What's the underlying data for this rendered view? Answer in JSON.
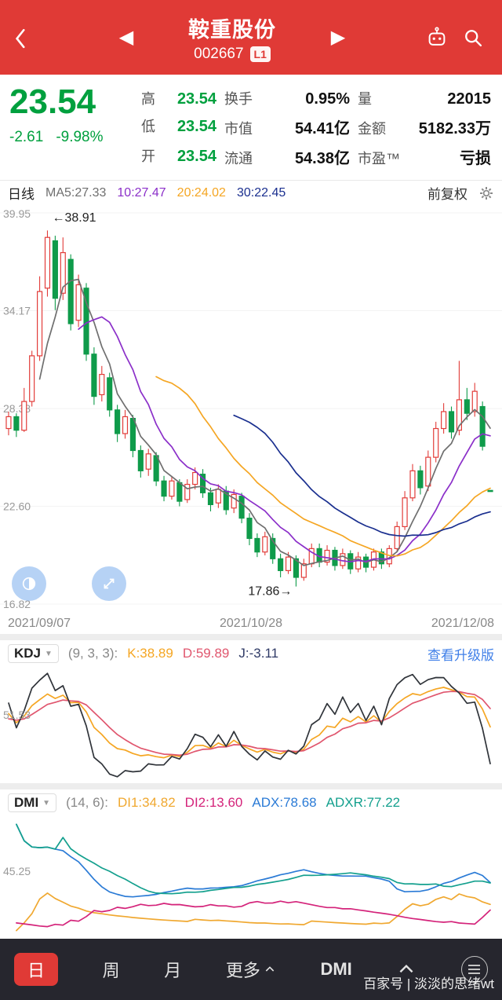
{
  "header": {
    "title": "鞍重股份",
    "code": "002667",
    "badge": "L1",
    "prev_glyph": "◀",
    "next_glyph": "▶"
  },
  "quote": {
    "price": "23.54",
    "change": "-2.61",
    "change_pct": "-9.98%",
    "stats": [
      {
        "label": "高",
        "value": "23.54"
      },
      {
        "label": "换手",
        "value": "0.95%"
      },
      {
        "label": "量",
        "value": "22015"
      },
      {
        "label": "低",
        "value": "23.54"
      },
      {
        "label": "市值",
        "value": "54.41亿"
      },
      {
        "label": "金额",
        "value": "5182.33万"
      },
      {
        "label": "开",
        "value": "23.54"
      },
      {
        "label": "流通",
        "value": "54.38亿"
      },
      {
        "label": "市盈™",
        "value": "亏损"
      }
    ]
  },
  "toolbar": {
    "period": "日线",
    "ma5": "MA5:27.33",
    "ma10": "10:27.47",
    "ma20": "20:24.02",
    "ma30": "30:22.45",
    "adjust": "前复权"
  },
  "kdj": {
    "name": "KDJ",
    "params": "(9, 3, 3):",
    "k": "K:38.89",
    "d": "D:59.89",
    "j": "J:-3.11",
    "link": "查看升级版",
    "axis": "51.53"
  },
  "dmi": {
    "name": "DMI",
    "params": "(14, 6):",
    "di1": "DI1:34.82",
    "di2": "DI2:13.60",
    "adx": "ADX:78.68",
    "adxr": "ADXR:77.22",
    "axis": "45.25"
  },
  "tabbar": {
    "day": "日",
    "week": "周",
    "month": "月",
    "more": "更多",
    "indicator": "DMI"
  },
  "watermark": "百家号 | 淡淡的思绪wt",
  "colors": {
    "accent_red": "#e03a36",
    "up_red": "#e23c39",
    "down_green": "#0f9b4a",
    "ma5": "#6f6f6f",
    "ma10": "#8b2fc9",
    "ma20": "#f5a623",
    "ma30": "#1a2f8f",
    "kdj_k": "#f5a623",
    "kdj_d": "#e0566e",
    "kdj_j": "#30343a",
    "dmi_di1": "#f0a830",
    "dmi_di2": "#d4237a",
    "dmi_adx": "#2b7bd6",
    "dmi_adxr": "#14a08e",
    "link_blue": "#3f7fe8"
  },
  "chart_data": {
    "type": "candlestick",
    "title": "鞍重股份 002667 日线",
    "ylim": [
      16.82,
      39.95
    ],
    "y_ticks": [
      39.95,
      34.17,
      28.38,
      22.6,
      16.82
    ],
    "x_ticks": [
      "2021/09/07",
      "2021/10/28",
      "2021/12/08"
    ],
    "annotation_high": {
      "text": "←38.91",
      "index": 5,
      "value": 39.45
    },
    "annotation_low": {
      "text": "17.86→",
      "index": 37,
      "value": 17.35
    },
    "overlays": [
      {
        "name": "MA5",
        "period": 5,
        "last": 27.33
      },
      {
        "name": "MA10",
        "period": 10,
        "last": 27.47
      },
      {
        "name": "MA20",
        "period": 20,
        "last": 24.02
      },
      {
        "name": "MA30",
        "period": 30,
        "last": 22.45
      }
    ],
    "sub_indicators": [
      {
        "name": "KDJ",
        "params": [
          9,
          3,
          3
        ],
        "K": 38.89,
        "D": 59.89,
        "J": -3.11
      },
      {
        "name": "DMI",
        "params": [
          14,
          6
        ],
        "DI1": 34.82,
        "DI2": 13.6,
        "ADX": 78.68,
        "ADXR": 77.22
      }
    ],
    "columns": [
      "open",
      "high",
      "low",
      "close"
    ],
    "ohlc": [
      [
        27.2,
        28.2,
        26.8,
        27.9
      ],
      [
        27.9,
        28.1,
        26.7,
        27.1
      ],
      [
        27.1,
        29.6,
        27.0,
        28.8
      ],
      [
        28.8,
        31.8,
        28.5,
        31.5
      ],
      [
        31.5,
        36.2,
        31.2,
        35.3
      ],
      [
        35.5,
        38.91,
        35.0,
        38.5
      ],
      [
        38.3,
        38.6,
        34.2,
        34.9
      ],
      [
        35.2,
        38.5,
        34.8,
        37.6
      ],
      [
        37.2,
        37.5,
        33.0,
        33.4
      ],
      [
        33.6,
        36.3,
        33.2,
        35.7
      ],
      [
        35.5,
        35.8,
        31.2,
        31.6
      ],
      [
        31.6,
        32.0,
        28.6,
        29.1
      ],
      [
        29.2,
        30.9,
        28.8,
        30.4
      ],
      [
        30.2,
        30.5,
        27.9,
        28.3
      ],
      [
        28.3,
        28.6,
        26.4,
        26.9
      ],
      [
        26.9,
        28.3,
        26.6,
        27.9
      ],
      [
        27.8,
        28.0,
        25.5,
        25.9
      ],
      [
        25.9,
        26.2,
        24.3,
        24.7
      ],
      [
        24.8,
        26.0,
        24.4,
        25.7
      ],
      [
        25.6,
        25.8,
        23.8,
        24.1
      ],
      [
        24.1,
        24.4,
        22.9,
        23.2
      ],
      [
        23.2,
        24.4,
        23.0,
        24.1
      ],
      [
        24.0,
        24.2,
        22.6,
        22.9
      ],
      [
        23.0,
        24.2,
        22.8,
        23.9
      ],
      [
        23.9,
        24.9,
        23.6,
        24.6
      ],
      [
        24.5,
        24.8,
        23.1,
        23.4
      ],
      [
        23.4,
        23.7,
        22.3,
        22.7
      ],
      [
        22.8,
        23.9,
        22.5,
        23.6
      ],
      [
        23.5,
        23.8,
        22.1,
        22.4
      ],
      [
        22.5,
        23.6,
        22.2,
        23.3
      ],
      [
        23.2,
        23.4,
        21.6,
        21.9
      ],
      [
        21.9,
        22.2,
        20.3,
        20.7
      ],
      [
        20.7,
        21.0,
        19.6,
        19.9
      ],
      [
        19.9,
        21.1,
        19.7,
        20.8
      ],
      [
        20.7,
        21.0,
        19.2,
        19.5
      ],
      [
        19.5,
        19.8,
        18.4,
        18.8
      ],
      [
        18.8,
        19.9,
        18.6,
        19.6
      ],
      [
        19.5,
        19.7,
        17.86,
        18.4
      ],
      [
        18.4,
        19.5,
        18.2,
        19.2
      ],
      [
        19.2,
        20.4,
        19.0,
        20.1
      ],
      [
        20.1,
        20.4,
        19.0,
        19.3
      ],
      [
        19.3,
        20.3,
        19.1,
        20.0
      ],
      [
        20.0,
        20.2,
        18.8,
        19.1
      ],
      [
        19.1,
        20.1,
        18.9,
        19.8
      ],
      [
        19.8,
        20.0,
        18.6,
        18.9
      ],
      [
        18.9,
        19.9,
        18.7,
        19.6
      ],
      [
        19.6,
        19.8,
        18.7,
        19.0
      ],
      [
        19.0,
        20.1,
        18.8,
        19.9
      ],
      [
        19.9,
        20.1,
        18.9,
        19.2
      ],
      [
        19.2,
        20.3,
        19.0,
        20.1
      ],
      [
        20.1,
        21.7,
        19.9,
        21.4
      ],
      [
        21.4,
        23.5,
        21.2,
        23.1
      ],
      [
        23.1,
        25.1,
        22.9,
        24.7
      ],
      [
        24.7,
        25.0,
        23.3,
        23.7
      ],
      [
        23.8,
        25.9,
        23.5,
        25.5
      ],
      [
        25.5,
        27.6,
        25.2,
        27.2
      ],
      [
        27.2,
        28.7,
        26.9,
        28.2
      ],
      [
        28.2,
        28.5,
        26.6,
        27.0
      ],
      [
        27.1,
        31.2,
        26.8,
        28.9
      ],
      [
        28.9,
        29.6,
        27.7,
        28.1
      ],
      [
        28.2,
        29.9,
        27.9,
        29.4
      ],
      [
        28.5,
        28.8,
        25.9,
        26.15
      ],
      [
        23.54,
        23.54,
        23.54,
        23.54
      ]
    ]
  }
}
